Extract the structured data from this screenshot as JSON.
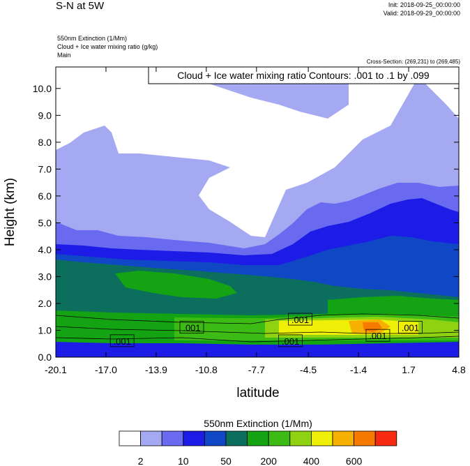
{
  "header": {
    "title": "S-N at 5W",
    "init": "Init: 2018-09-25_00:00:00",
    "valid": "Valid: 2018-09-29_00:00:00",
    "field_lines": [
      "550nm Extinction   (1/Mm)",
      "Cloud + Ice water mixing ratio   (g/kg)",
      "Main"
    ],
    "cross_section": "Cross-Section: (269,231) to (269,485)"
  },
  "colors": {
    "levels": [
      "#ffffff",
      "#a4a9f2",
      "#6a6af0",
      "#1c1ce6",
      "#1047c4",
      "#0c6f5e",
      "#13a313",
      "#3dbb15",
      "#8ed212",
      "#f0ef08",
      "#f6b000",
      "#f77a00",
      "#f52a10"
    ]
  },
  "chart_data": {
    "type": "heatmap",
    "title": "550nm Extinction  (1/Mm)",
    "overlay_label": "Cloud + Ice water mixing ratio Contours: .001 to .1 by .099",
    "xlabel": "latitude",
    "ylabel": "Height (km)",
    "xlim": [
      -20.1,
      4.8
    ],
    "ylim": [
      0,
      10.8
    ],
    "x_ticks": [
      "-20.1",
      "-17.0",
      "-13.9",
      "-10.8",
      "-7.7",
      "-4.5",
      "-1.4",
      "1.7",
      "4.8"
    ],
    "x_tick_values": [
      -20.1,
      -17.0,
      -13.9,
      -10.8,
      -7.7,
      -4.5,
      -1.4,
      1.7,
      4.8
    ],
    "y_ticks": [
      "0.0",
      "1.0",
      "2.0",
      "3.0",
      "4.0",
      "5.0",
      "6.0",
      "7.0",
      "8.0",
      "9.0",
      "10.0"
    ],
    "y_tick_values": [
      0,
      1,
      2,
      3,
      4,
      5,
      6,
      7,
      8,
      9,
      10
    ],
    "colorbar_labels": [
      "2",
      "10",
      "50",
      "200",
      "400",
      "600"
    ],
    "contour_labels": [
      {
        "text": ".001",
        "lat": -11.7,
        "h": 1.1
      },
      {
        "text": ".001",
        "lat": -16.0,
        "h": 0.6
      },
      {
        "text": ".001",
        "lat": -5.0,
        "h": 1.4
      },
      {
        "text": ".001",
        "lat": -5.6,
        "h": 0.6
      },
      {
        "text": ".001",
        "lat": -0.2,
        "h": 0.8
      },
      {
        "text": ".001",
        "lat": 1.8,
        "h": 1.1
      }
    ]
  }
}
